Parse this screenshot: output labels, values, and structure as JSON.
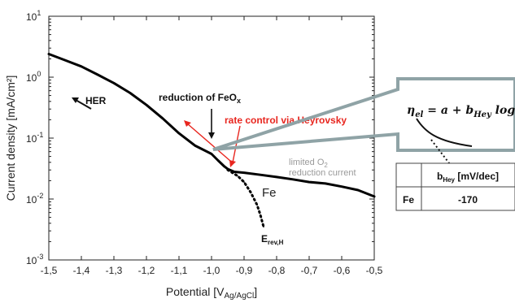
{
  "chart_data": {
    "type": "line",
    "xlabel": "Potential [V",
    "xlabel_sub": "Ag/AgCl",
    "xlabel_end": "]",
    "ylabel": "Current density [mA/cm²]",
    "x_scale": "linear",
    "y_scale": "log",
    "xlim": [
      -1.5,
      -0.5
    ],
    "ylim": [
      0.001,
      10
    ],
    "x_ticks": [
      -1.5,
      -1.4,
      -1.3,
      -1.2,
      -1.1,
      -1.0,
      -0.9,
      -0.8,
      -0.7,
      -0.6,
      -0.5
    ],
    "x_tick_labels": [
      "-1,5",
      "-1,4",
      "-1,3",
      "-1,2",
      "-1,1",
      "-1,0",
      "-0,9",
      "-0,8",
      "-0,7",
      "-0,6",
      "-0,5"
    ],
    "y_ticks": [
      0.001,
      0.01,
      0.1,
      1,
      10
    ],
    "y_tick_labels": [
      {
        "base": "10",
        "exp": "-3"
      },
      {
        "base": "10",
        "exp": "-2"
      },
      {
        "base": "10",
        "exp": "-1"
      },
      {
        "base": "10",
        "exp": "0"
      },
      {
        "base": "10",
        "exp": "1"
      }
    ],
    "series": [
      {
        "name": "Fe",
        "style": "solid",
        "color": "#000000",
        "x": [
          -1.5,
          -1.45,
          -1.4,
          -1.35,
          -1.3,
          -1.25,
          -1.2,
          -1.15,
          -1.1,
          -1.05,
          -1.0,
          -0.98,
          -0.96,
          -0.95,
          -0.93,
          -0.9,
          -0.85,
          -0.8,
          -0.75,
          -0.7,
          -0.65,
          -0.6,
          -0.55,
          -0.5
        ],
        "y": [
          2.4,
          1.9,
          1.5,
          1.1,
          0.8,
          0.55,
          0.35,
          0.21,
          0.12,
          0.075,
          0.055,
          0.043,
          0.034,
          0.031,
          0.028,
          0.027,
          0.025,
          0.023,
          0.021,
          0.019,
          0.018,
          0.016,
          0.014,
          0.011
        ]
      },
      {
        "name": "",
        "style": "dotted",
        "color": "#000000",
        "x": [
          -0.95,
          -0.92,
          -0.9,
          -0.88,
          -0.86,
          -0.85,
          -0.84
        ],
        "y": [
          0.03,
          0.024,
          0.019,
          0.013,
          0.008,
          0.0055,
          0.0035
        ]
      }
    ],
    "annotations": {
      "her": "HER",
      "reduction": "reduction of FeO",
      "reduction_sub": "x",
      "rate_control": "rate control via Heyrovsky",
      "limited_1": "limited O",
      "limited_1_sub": "2",
      "limited_2": "reduction current",
      "series_label": "Fe",
      "erev": "E",
      "erev_sub": "rev,H"
    },
    "colors": {
      "curve": "#000000",
      "red_annotation": "#e8261f",
      "callout": "#8fa3a6",
      "gray_text": "#9a9a9a"
    }
  },
  "inset": {
    "equation": "η_el = a + b_Hey log j",
    "table": {
      "header": [
        "",
        "b_Hey [mV/dec]"
      ],
      "rows": [
        [
          "Fe",
          "-170"
        ]
      ]
    }
  }
}
